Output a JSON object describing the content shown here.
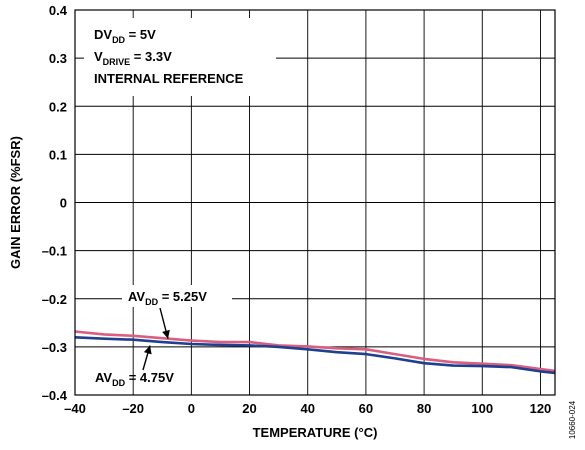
{
  "chart_data": {
    "type": "line",
    "title": "",
    "xlabel": "TEMPERATURE (°C)",
    "ylabel": "GAIN ERROR (%FSR)",
    "xlim": [
      -40,
      125
    ],
    "ylim": [
      -0.4,
      0.4
    ],
    "x_ticks": [
      "–40",
      "–20",
      "0",
      "20",
      "40",
      "60",
      "80",
      "100",
      "120"
    ],
    "y_ticks": [
      "0.4",
      "0.3",
      "0.2",
      "0.1",
      "0",
      "–0.1",
      "–0.2",
      "–0.3",
      "–0.4"
    ],
    "grid": true,
    "series": [
      {
        "name": "AVDD = 5.25V",
        "color": "#d95f7e",
        "x": [
          -40,
          -30,
          -20,
          -10,
          0,
          10,
          20,
          30,
          40,
          50,
          60,
          70,
          80,
          90,
          100,
          110,
          120,
          125
        ],
        "y": [
          -0.268,
          -0.274,
          -0.277,
          -0.282,
          -0.287,
          -0.29,
          -0.29,
          -0.297,
          -0.299,
          -0.303,
          -0.305,
          -0.315,
          -0.325,
          -0.332,
          -0.335,
          -0.338,
          -0.346,
          -0.35
        ]
      },
      {
        "name": "AVDD = 4.75V",
        "color": "#1f3f8f",
        "x": [
          -40,
          -30,
          -20,
          -10,
          0,
          10,
          20,
          30,
          40,
          50,
          60,
          70,
          80,
          90,
          100,
          110,
          120,
          125
        ],
        "y": [
          -0.28,
          -0.283,
          -0.285,
          -0.29,
          -0.294,
          -0.296,
          -0.297,
          -0.3,
          -0.305,
          -0.311,
          -0.315,
          -0.324,
          -0.334,
          -0.339,
          -0.34,
          -0.342,
          -0.351,
          -0.354
        ]
      }
    ],
    "annotations": {
      "conditions": [
        {
          "main": "DV",
          "sub": "DD",
          "rest": " = 5V"
        },
        {
          "main": "V",
          "sub": "DRIVE",
          "rest": " = 3.3V"
        },
        {
          "main": "INTERNAL REFERENCE",
          "sub": "",
          "rest": ""
        }
      ],
      "label_high": {
        "main": "AV",
        "sub": "DD",
        "rest": " = 5.25V"
      },
      "label_low": {
        "main": "AV",
        "sub": "DD",
        "rest": " = 4.75V"
      }
    },
    "figure_id": "10660-024"
  }
}
